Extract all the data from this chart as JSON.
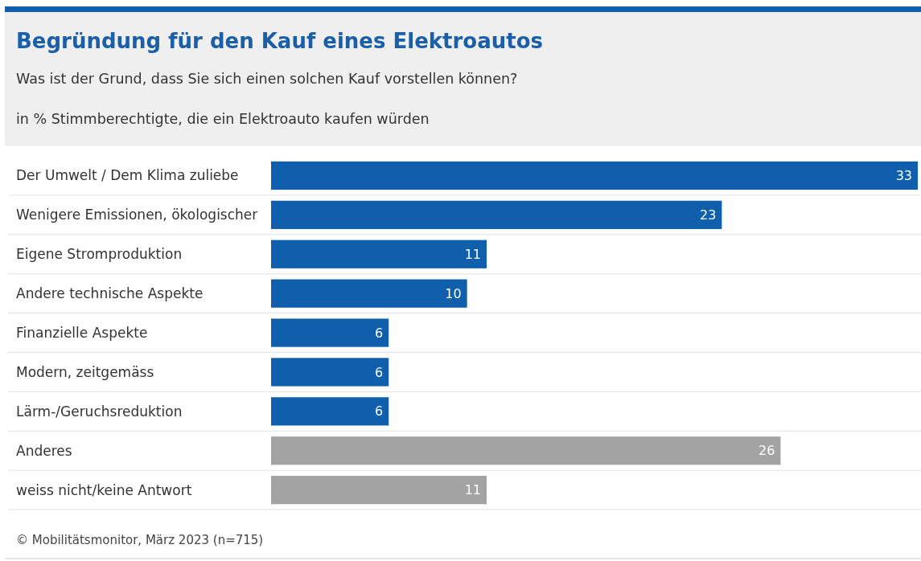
{
  "chart_data": {
    "type": "bar",
    "orientation": "horizontal",
    "title": "Begründung für den Kauf eines Elektroautos",
    "subtitle": "Was ist der Grund, dass Sie sich einen solchen Kauf vorstellen können?",
    "xlabel": "in % Stimmberechtigte, die ein Elektroauto kaufen würden",
    "categories": [
      "Der Umwelt / Dem Klima zuliebe",
      "Wenigere Emissionen, ökologischer",
      "Eigene Stromproduktion",
      "Andere technische Aspekte",
      "Finanzielle Aspekte",
      "Modern, zeitgemäss",
      "Lärm-/Geruchsreduktion",
      "Anderes",
      "weiss nicht/keine Antwort"
    ],
    "values": [
      33,
      23,
      11,
      10,
      6,
      6,
      6,
      26,
      11
    ],
    "colors": [
      "#0f5fad",
      "#0f5fad",
      "#0f5fad",
      "#0f5fad",
      "#0f5fad",
      "#0f5fad",
      "#0f5fad",
      "#a3a3a3",
      "#a3a3a3"
    ],
    "data_labels": true,
    "grid": "y",
    "annotations": [
      "© Mobilitätsmonitor, März 2023 (n=715)"
    ]
  }
}
